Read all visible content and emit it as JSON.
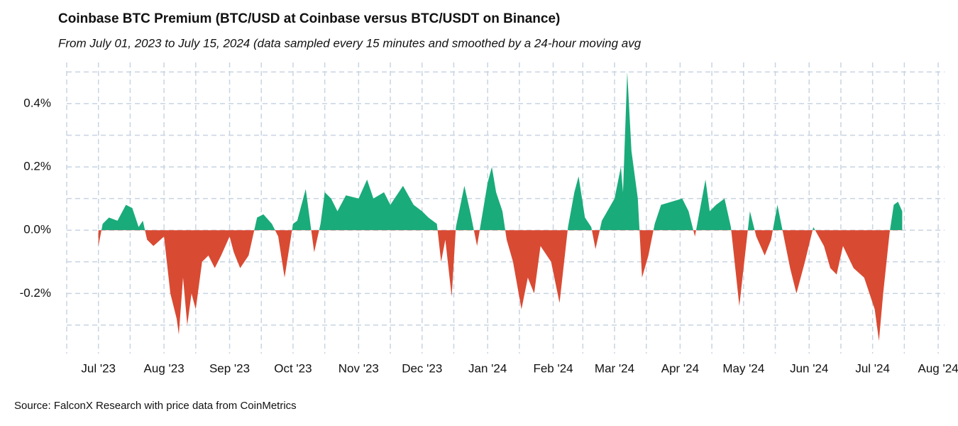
{
  "chart_data": {
    "type": "area",
    "title": "Coinbase BTC Premium (BTC/USD at Coinbase versus BTC/USDT on Binance)",
    "subtitle": "From July 01, 2023 to July 15, 2024 (data sampled every 15 minutes and smoothed by a 24-hour moving avg",
    "source": "Source: FalconX Research with price data from CoinMetrics",
    "positive_color": "#1aab7a",
    "negative_color": "#d94a33",
    "grid": true,
    "ylim": [
      -0.39,
      0.53
    ],
    "yticks": [
      {
        "value": -0.2,
        "label": "-0.2%"
      },
      {
        "value": 0,
        "label": "0.0%"
      },
      {
        "value": 0.2,
        "label": "0.2%"
      },
      {
        "value": 0.4,
        "label": "0.4%"
      }
    ],
    "y_minor_ticks": [
      -0.3,
      -0.1,
      0.1,
      0.3,
      0.5
    ],
    "xlim": [
      "2023-06-16",
      "2024-08-04"
    ],
    "xticks": [
      {
        "value": "2023-07-01",
        "label": "Jul '23"
      },
      {
        "value": "2023-08-01",
        "label": "Aug '23"
      },
      {
        "value": "2023-09-01",
        "label": "Sep '23"
      },
      {
        "value": "2023-10-01",
        "label": "Oct '23"
      },
      {
        "value": "2023-11-01",
        "label": "Nov '23"
      },
      {
        "value": "2023-12-01",
        "label": "Dec '23"
      },
      {
        "value": "2024-01-01",
        "label": "Jan '24"
      },
      {
        "value": "2024-02-01",
        "label": "Feb '24"
      },
      {
        "value": "2024-03-01",
        "label": "Mar '24"
      },
      {
        "value": "2024-04-01",
        "label": "Apr '24"
      },
      {
        "value": "2024-05-01",
        "label": "May '24"
      },
      {
        "value": "2024-06-01",
        "label": "Jun '24"
      },
      {
        "value": "2024-07-01",
        "label": "Jul '24"
      },
      {
        "value": "2024-08-01",
        "label": "Aug '24"
      }
    ],
    "x_minor_ticks": [
      "2023-06-16",
      "2023-07-16",
      "2023-08-16",
      "2023-09-16",
      "2023-10-16",
      "2023-11-16",
      "2023-12-16",
      "2024-01-16",
      "2024-02-15",
      "2024-03-16",
      "2024-04-16",
      "2024-05-16",
      "2024-06-16",
      "2024-07-16"
    ],
    "x": [
      "2023-07-01",
      "2023-07-03",
      "2023-07-06",
      "2023-07-10",
      "2023-07-14",
      "2023-07-17",
      "2023-07-20",
      "2023-07-22",
      "2023-07-24",
      "2023-07-27",
      "2023-08-01",
      "2023-08-04",
      "2023-08-07",
      "2023-08-08",
      "2023-08-10",
      "2023-08-12",
      "2023-08-14",
      "2023-08-16",
      "2023-08-19",
      "2023-08-22",
      "2023-08-25",
      "2023-08-28",
      "2023-09-01",
      "2023-09-03",
      "2023-09-06",
      "2023-09-10",
      "2023-09-12",
      "2023-09-14",
      "2023-09-17",
      "2023-09-21",
      "2023-09-24",
      "2023-09-27",
      "2023-10-01",
      "2023-10-03",
      "2023-10-07",
      "2023-10-09",
      "2023-10-11",
      "2023-10-14",
      "2023-10-16",
      "2023-10-19",
      "2023-10-22",
      "2023-10-26",
      "2023-11-01",
      "2023-11-05",
      "2023-11-08",
      "2023-11-13",
      "2023-11-16",
      "2023-11-22",
      "2023-11-27",
      "2023-12-01",
      "2023-12-04",
      "2023-12-08",
      "2023-12-10",
      "2023-12-12",
      "2023-12-15",
      "2023-12-17",
      "2023-12-21",
      "2023-12-24",
      "2023-12-27",
      "2024-01-01",
      "2024-01-03",
      "2024-01-05",
      "2024-01-08",
      "2024-01-10",
      "2024-01-13",
      "2024-01-17",
      "2024-01-20",
      "2024-01-23",
      "2024-01-26",
      "2024-01-31",
      "2024-02-04",
      "2024-02-08",
      "2024-02-11",
      "2024-02-13",
      "2024-02-16",
      "2024-02-19",
      "2024-02-21",
      "2024-02-24",
      "2024-03-01",
      "2024-03-04",
      "2024-03-05",
      "2024-03-07",
      "2024-03-09",
      "2024-03-12",
      "2024-03-14",
      "2024-03-17",
      "2024-03-20",
      "2024-03-23",
      "2024-04-02",
      "2024-04-05",
      "2024-04-08",
      "2024-04-13",
      "2024-04-15",
      "2024-04-18",
      "2024-04-22",
      "2024-04-25",
      "2024-04-29",
      "2024-05-04",
      "2024-05-07",
      "2024-05-11",
      "2024-05-14",
      "2024-05-17",
      "2024-05-20",
      "2024-05-23",
      "2024-05-26",
      "2024-05-30",
      "2024-06-03",
      "2024-06-08",
      "2024-06-11",
      "2024-06-14",
      "2024-06-17",
      "2024-06-22",
      "2024-06-27",
      "2024-07-02",
      "2024-07-04",
      "2024-07-06",
      "2024-07-09",
      "2024-07-11",
      "2024-07-13",
      "2024-07-15"
    ],
    "values": [
      -0.05,
      0.02,
      0.04,
      0.03,
      0.08,
      0.07,
      0.01,
      0.03,
      -0.03,
      -0.05,
      -0.02,
      -0.2,
      -0.28,
      -0.33,
      -0.15,
      -0.3,
      -0.2,
      -0.25,
      -0.1,
      -0.08,
      -0.12,
      -0.08,
      -0.02,
      -0.07,
      -0.12,
      -0.08,
      -0.02,
      0.04,
      0.05,
      0.02,
      -0.02,
      -0.15,
      0.02,
      0.03,
      0.13,
      0.03,
      -0.07,
      0.02,
      0.12,
      0.1,
      0.06,
      0.11,
      0.1,
      0.16,
      0.1,
      0.12,
      0.08,
      0.14,
      0.08,
      0.06,
      0.04,
      0.02,
      -0.1,
      -0.03,
      -0.21,
      0.01,
      0.14,
      0.05,
      -0.05,
      0.15,
      0.2,
      0.12,
      0.06,
      -0.03,
      -0.1,
      -0.25,
      -0.15,
      -0.2,
      -0.05,
      -0.1,
      -0.23,
      0.01,
      0.12,
      0.17,
      0.04,
      0.01,
      -0.06,
      0.03,
      0.1,
      0.2,
      0.12,
      0.5,
      0.25,
      0.1,
      -0.15,
      -0.08,
      0.02,
      0.08,
      0.1,
      0.06,
      -0.02,
      0.16,
      0.06,
      0.08,
      0.1,
      0.01,
      -0.24,
      0.06,
      -0.02,
      -0.08,
      -0.03,
      0.08,
      -0.02,
      -0.12,
      -0.2,
      -0.1,
      0.01,
      -0.05,
      -0.12,
      -0.14,
      -0.05,
      -0.12,
      -0.15,
      -0.25,
      -0.35,
      -0.2,
      -0.01,
      0.08,
      0.09,
      0.06
    ]
  }
}
